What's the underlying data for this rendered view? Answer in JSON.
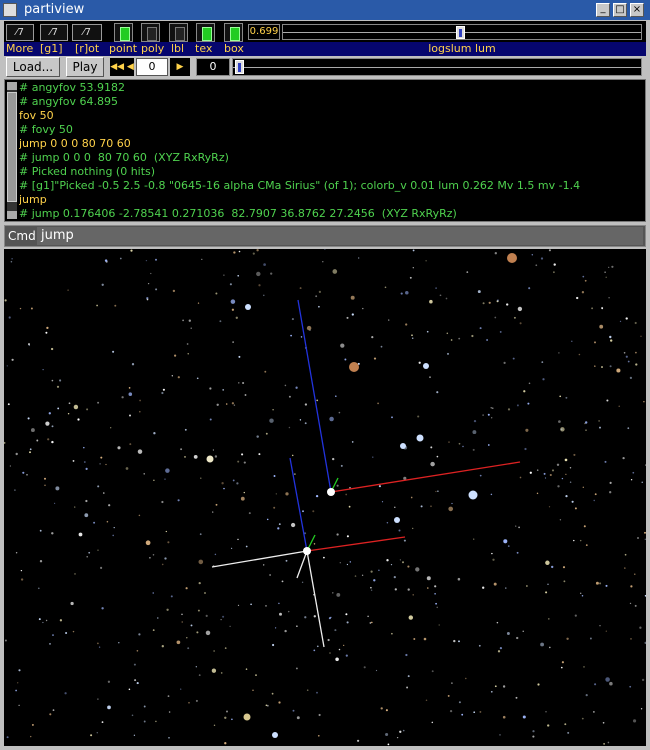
{
  "window": {
    "title": "partiview"
  },
  "toolbar": {
    "labels": [
      "More",
      "[g1]",
      "[r]ot",
      "point",
      "poly",
      "lbl",
      "tex",
      "box"
    ],
    "slider_value": "0.699",
    "slider_label": "logslum lum"
  },
  "controls": {
    "load": "Load...",
    "play": "Play",
    "frame": "0",
    "time": "0"
  },
  "console": {
    "lines": [
      "# angyfov 53.9182",
      "# angyfov 64.895",
      "fov 50",
      "# fovy 50",
      "jump 0 0 0 80 70 60",
      "# jump 0 0 0  80 70 60  (XYZ RxRyRz)",
      "# Picked nothing (0 hits)",
      "# [g1]\"Picked -0.5 2.5 -0.8 \"0645-16 alpha CMa Sirius\" (of 1); colorb_v 0.01 lum 0.262 Mv 1.5 mv -1.4",
      "jump",
      "# jump 0.176406 -2.78541 0.271036  82.7907 36.8762 27.2456  (XYZ RxRyRz)"
    ]
  },
  "command": {
    "label": "Cmd:",
    "text": "jump"
  }
}
